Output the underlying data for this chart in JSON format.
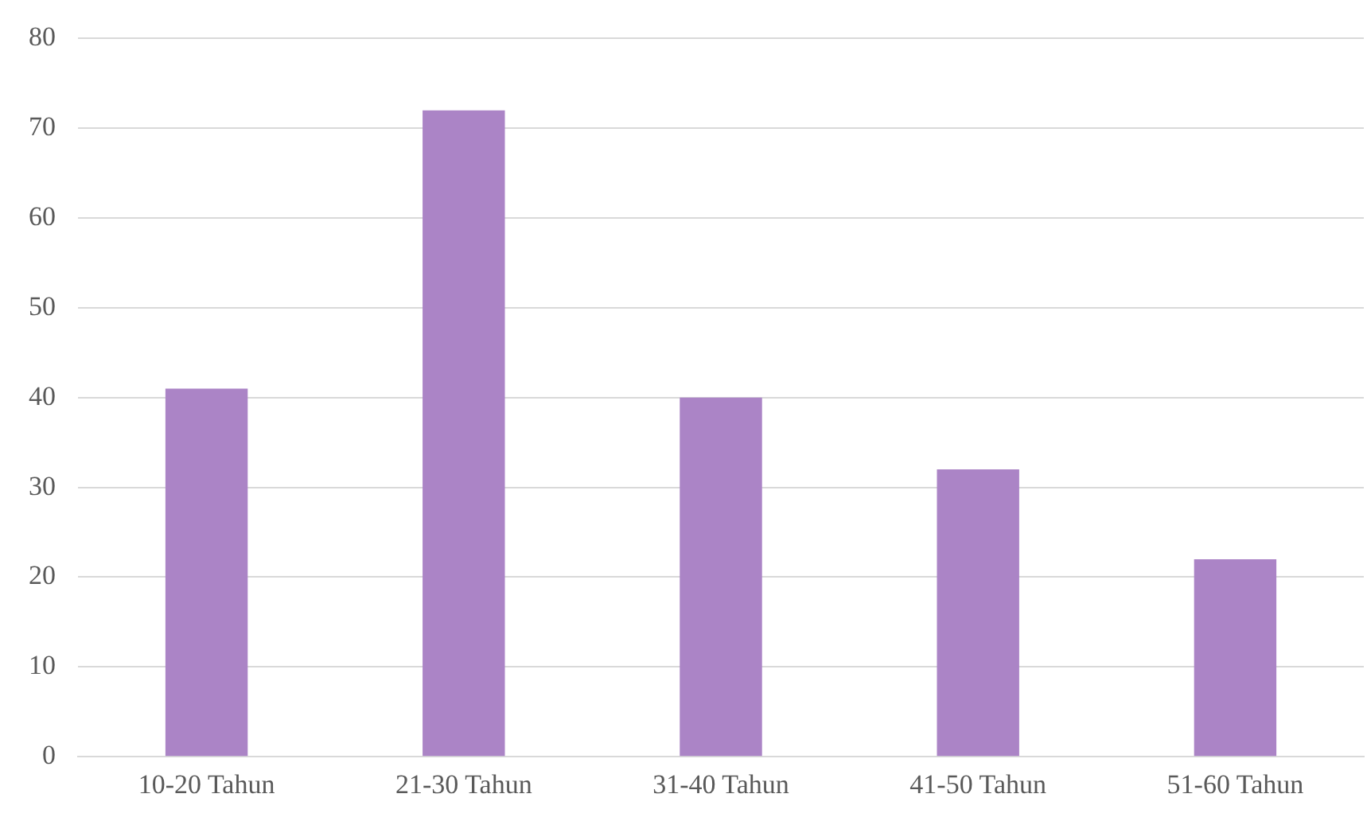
{
  "chart_data": {
    "type": "bar",
    "categories": [
      "10-20 Tahun",
      "21-30 Tahun",
      "31-40 Tahun",
      "41-50 Tahun",
      "51-60 Tahun"
    ],
    "values": [
      41,
      72,
      40,
      32,
      22
    ],
    "color": "#ab84c6",
    "ylim": [
      0,
      80
    ],
    "yticks": [
      0,
      10,
      20,
      30,
      40,
      50,
      60,
      70,
      80
    ],
    "grid": "y"
  }
}
